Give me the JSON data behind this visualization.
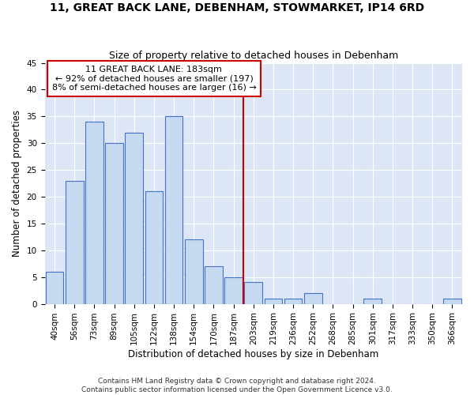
{
  "title": "11, GREAT BACK LANE, DEBENHAM, STOWMARKET, IP14 6RD",
  "subtitle": "Size of property relative to detached houses in Debenham",
  "xlabel": "Distribution of detached houses by size in Debenham",
  "ylabel": "Number of detached properties",
  "bar_labels": [
    "40sqm",
    "56sqm",
    "73sqm",
    "89sqm",
    "105sqm",
    "122sqm",
    "138sqm",
    "154sqm",
    "170sqm",
    "187sqm",
    "203sqm",
    "219sqm",
    "236sqm",
    "252sqm",
    "268sqm",
    "285sqm",
    "301sqm",
    "317sqm",
    "333sqm",
    "350sqm",
    "366sqm"
  ],
  "bar_values": [
    6,
    23,
    34,
    30,
    32,
    21,
    35,
    12,
    7,
    5,
    4,
    1,
    1,
    2,
    0,
    0,
    1,
    0,
    0,
    0,
    1
  ],
  "bar_color": "#c5d9f1",
  "bar_edge_color": "#4472c4",
  "property_line_x": 9.5,
  "annotation_line1": "11 GREAT BACK LANE: 183sqm",
  "annotation_line2": "← 92% of detached houses are smaller (197)",
  "annotation_line3": "8% of semi-detached houses are larger (16) →",
  "annotation_box_color": "#ffffff",
  "annotation_box_edge_color": "#cc0000",
  "vline_color": "#cc0000",
  "ylim": [
    0,
    45
  ],
  "yticks": [
    0,
    5,
    10,
    15,
    20,
    25,
    30,
    35,
    40,
    45
  ],
  "background_color": "#dce6f5",
  "footer_line1": "Contains HM Land Registry data © Crown copyright and database right 2024.",
  "footer_line2": "Contains public sector information licensed under the Open Government Licence v3.0.",
  "title_fontsize": 10,
  "subtitle_fontsize": 9,
  "xlabel_fontsize": 8.5,
  "ylabel_fontsize": 8.5,
  "tick_fontsize": 7.5,
  "footer_fontsize": 6.5,
  "annotation_fontsize": 8
}
